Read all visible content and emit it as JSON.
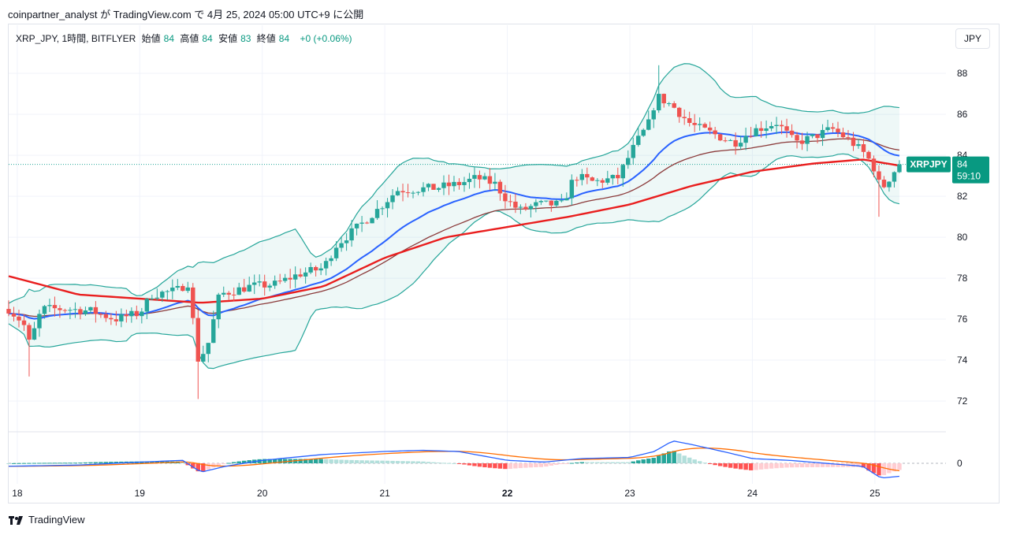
{
  "header": {
    "publisher": "coinpartner_analyst が TradingView.com で 4月 25, 2024 05:00 UTC+9 に公開"
  },
  "legend": {
    "symbol": "XRP_JPY, 1時間, BITFLYER",
    "open_label": "始値",
    "open": "84",
    "high_label": "高値",
    "high": "84",
    "low_label": "安値",
    "low": "83",
    "close_label": "終値",
    "close": "84",
    "change": "+0 (+0.06%)"
  },
  "currency_button": "JPY",
  "price_badge": {
    "symbol": "XRPJPY",
    "price": "84",
    "countdown": "59:10"
  },
  "footer": {
    "logo_text": "TradingView"
  },
  "colors": {
    "up": "#26a69a",
    "down": "#ef5350",
    "band": "#26a69a",
    "ema20": "#2962ff",
    "ema50": "#8b3a3a",
    "ema200": "#e91e1e",
    "macd": "#2962ff",
    "signal": "#ff6d00",
    "badge": "#089981"
  },
  "chart_data": {
    "type": "candlestick",
    "y_ticks": [
      "72",
      "74",
      "76",
      "78",
      "80",
      "82",
      "84",
      "86",
      "88"
    ],
    "ylim": [
      70.5,
      89.2
    ],
    "x_ticks": [
      "18",
      "19",
      "20",
      "21",
      "22",
      "23",
      "24",
      "25"
    ],
    "x_tick_bold": "22",
    "xlim_days": [
      17.93,
      25.58
    ],
    "macd_zero_label": "0",
    "close_anchors": [
      [
        17.93,
        76.5
      ],
      [
        18.05,
        75.8
      ],
      [
        18.1,
        74.8
      ],
      [
        18.2,
        76.5
      ],
      [
        18.4,
        76.5
      ],
      [
        18.6,
        76.4
      ],
      [
        18.8,
        76.0
      ],
      [
        19.0,
        76.3
      ],
      [
        19.1,
        77.2
      ],
      [
        19.3,
        77.4
      ],
      [
        19.4,
        77.8
      ],
      [
        19.47,
        74.0
      ],
      [
        19.55,
        74.6
      ],
      [
        19.65,
        77.2
      ],
      [
        19.9,
        77.6
      ],
      [
        20.1,
        77.7
      ],
      [
        20.3,
        78.2
      ],
      [
        20.5,
        78.5
      ],
      [
        20.6,
        79.6
      ],
      [
        20.8,
        80.6
      ],
      [
        20.95,
        81.4
      ],
      [
        21.1,
        82.3
      ],
      [
        21.4,
        82.4
      ],
      [
        21.6,
        82.6
      ],
      [
        21.75,
        82.9
      ],
      [
        21.9,
        82.6
      ],
      [
        22.0,
        81.8
      ],
      [
        22.1,
        81.3
      ],
      [
        22.25,
        81.6
      ],
      [
        22.45,
        81.6
      ],
      [
        22.55,
        83.0
      ],
      [
        22.7,
        82.7
      ],
      [
        22.9,
        82.9
      ],
      [
        23.05,
        84.6
      ],
      [
        23.15,
        85.5
      ],
      [
        23.22,
        86.9
      ],
      [
        23.35,
        86.4
      ],
      [
        23.5,
        85.5
      ],
      [
        23.7,
        85.0
      ],
      [
        23.85,
        84.6
      ],
      [
        24.0,
        85.2
      ],
      [
        24.2,
        85.6
      ],
      [
        24.35,
        84.6
      ],
      [
        24.5,
        84.9
      ],
      [
        24.65,
        85.3
      ],
      [
        24.8,
        84.7
      ],
      [
        24.93,
        84.0
      ],
      [
        25.0,
        83.3
      ],
      [
        25.05,
        82.3
      ],
      [
        25.12,
        82.9
      ],
      [
        25.2,
        83.6
      ]
    ],
    "ema200_anchors": [
      [
        17.93,
        78.1
      ],
      [
        18.5,
        77.2
      ],
      [
        19.0,
        77.0
      ],
      [
        19.5,
        76.8
      ],
      [
        20.0,
        77.0
      ],
      [
        20.5,
        77.6
      ],
      [
        21.0,
        79.0
      ],
      [
        21.5,
        80.0
      ],
      [
        22.0,
        80.5
      ],
      [
        22.5,
        81.0
      ],
      [
        23.0,
        81.6
      ],
      [
        23.5,
        82.5
      ],
      [
        24.0,
        83.2
      ],
      [
        24.5,
        83.6
      ],
      [
        24.9,
        83.8
      ],
      [
        25.2,
        83.5
      ]
    ],
    "macd_anchors": [
      [
        17.93,
        -0.05
      ],
      [
        18.5,
        -0.03
      ],
      [
        19.0,
        0.02
      ],
      [
        19.35,
        0.05
      ],
      [
        19.5,
        -0.15
      ],
      [
        19.7,
        -0.05
      ],
      [
        20.0,
        0.05
      ],
      [
        20.5,
        0.15
      ],
      [
        21.0,
        0.2
      ],
      [
        21.3,
        0.22
      ],
      [
        21.6,
        0.2
      ],
      [
        22.0,
        0.05
      ],
      [
        22.3,
        0.02
      ],
      [
        22.6,
        0.08
      ],
      [
        23.0,
        0.1
      ],
      [
        23.2,
        0.2
      ],
      [
        23.35,
        0.38
      ],
      [
        23.5,
        0.32
      ],
      [
        23.8,
        0.18
      ],
      [
        24.0,
        0.08
      ],
      [
        24.3,
        0.05
      ],
      [
        24.6,
        0.0
      ],
      [
        24.9,
        -0.05
      ],
      [
        25.05,
        -0.25
      ],
      [
        25.2,
        -0.22
      ]
    ]
  }
}
